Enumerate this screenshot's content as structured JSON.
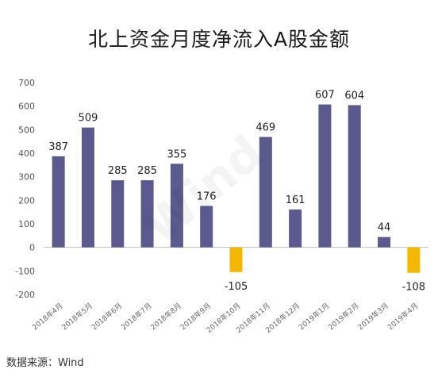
{
  "chart_data": {
    "type": "bar",
    "title": "北上资金月度净流入A股金额",
    "categories": [
      "2018年4月",
      "2018年5月",
      "2018年6月",
      "2018年7月",
      "2018年8月",
      "2018年9月",
      "2018年10月",
      "2018年11月",
      "2018年12月",
      "2019年1月",
      "2019年2月",
      "2019年3月",
      "2019年4月"
    ],
    "values": [
      387,
      509,
      285,
      285,
      355,
      176,
      -105,
      469,
      161,
      607,
      604,
      44,
      -108
    ],
    "ylim": [
      -200,
      700
    ],
    "yticks": [
      -200,
      -100,
      0,
      100,
      200,
      300,
      400,
      500,
      600,
      700
    ],
    "grid": false,
    "legend": "none",
    "colors": {
      "positive": "#5b5a8f",
      "negative": "#f5b800"
    }
  },
  "source": "数据来源：Wind",
  "watermark": "Wind"
}
